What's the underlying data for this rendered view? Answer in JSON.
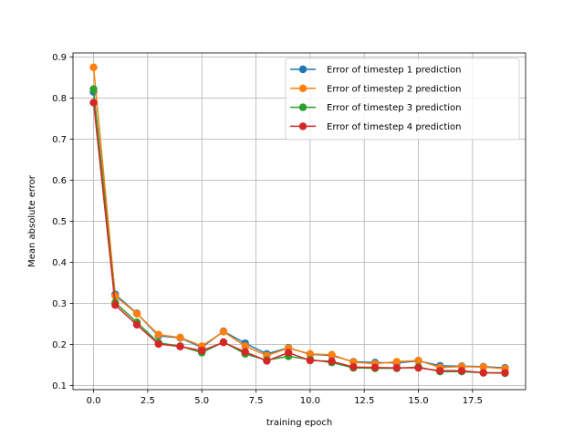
{
  "chart_data": {
    "type": "line",
    "xlabel": "training epoch",
    "ylabel": "Mean absolute error",
    "xlim": [
      -0.95,
      19.95
    ],
    "ylim": [
      0.09,
      0.91
    ],
    "xticks": [
      0.0,
      2.5,
      5.0,
      7.5,
      10.0,
      12.5,
      15.0,
      17.5
    ],
    "xtick_labels": [
      "0.0",
      "2.5",
      "5.0",
      "7.5",
      "10.0",
      "12.5",
      "15.0",
      "17.5"
    ],
    "yticks": [
      0.1,
      0.2,
      0.3,
      0.4,
      0.5,
      0.6,
      0.7,
      0.8,
      0.9
    ],
    "ytick_labels": [
      "0.1",
      "0.2",
      "0.3",
      "0.4",
      "0.5",
      "0.6",
      "0.7",
      "0.8",
      "0.9"
    ],
    "grid": true,
    "legend_position": "top-right",
    "x": [
      0,
      1,
      2,
      3,
      4,
      5,
      6,
      7,
      8,
      9,
      10,
      11,
      12,
      13,
      14,
      15,
      16,
      17,
      18,
      19
    ],
    "series": [
      {
        "name": "Error of timestep 1 prediction",
        "color": "#1f77b4",
        "values": [
          0.815,
          0.322,
          0.276,
          0.221,
          0.216,
          0.193,
          0.232,
          0.203,
          0.177,
          0.192,
          0.176,
          0.173,
          0.158,
          0.156,
          0.155,
          0.16,
          0.148,
          0.147,
          0.146,
          0.143
        ]
      },
      {
        "name": "Error of timestep 2 prediction",
        "color": "#ff7f0e",
        "values": [
          0.875,
          0.318,
          0.275,
          0.224,
          0.217,
          0.196,
          0.231,
          0.196,
          0.173,
          0.191,
          0.177,
          0.175,
          0.157,
          0.153,
          0.158,
          0.161,
          0.144,
          0.146,
          0.145,
          0.141
        ]
      },
      {
        "name": "Error of timestep 3 prediction",
        "color": "#2ca02c",
        "values": [
          0.822,
          0.302,
          0.254,
          0.204,
          0.196,
          0.18,
          0.206,
          0.177,
          0.162,
          0.171,
          0.163,
          0.156,
          0.143,
          0.142,
          0.142,
          0.145,
          0.134,
          0.134,
          0.131,
          0.13
        ]
      },
      {
        "name": "Error of timestep 4 prediction",
        "color": "#d62728",
        "values": [
          0.789,
          0.296,
          0.248,
          0.201,
          0.195,
          0.185,
          0.205,
          0.182,
          0.16,
          0.18,
          0.161,
          0.159,
          0.145,
          0.144,
          0.143,
          0.143,
          0.136,
          0.136,
          0.131,
          0.131
        ]
      }
    ]
  }
}
